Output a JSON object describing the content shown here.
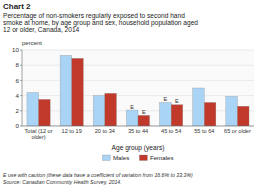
{
  "chart_data": {
    "type": "bar",
    "title": "Chart 2",
    "subtitle": "Percentage of non-smokers regularly exposed to second hand\nsmoke at home, by age group and sex, household population aged\n12 or older, Canada, 2014",
    "y_label": "percent",
    "x_label": "Age group (years)",
    "categories": [
      "Total (12 or\nolder)",
      "12 to 19",
      "20 to 34",
      "35 to 44",
      "45 to 54",
      "55 to 64",
      "65 or older"
    ],
    "series": [
      {
        "name": "Males",
        "color": "#aad4f5",
        "values": [
          4.4,
          9.3,
          4.0,
          2.1,
          3.1,
          5.0,
          3.9
        ]
      },
      {
        "name": "Females",
        "color": "#c0392b",
        "values": [
          3.5,
          8.9,
          4.3,
          1.4,
          2.8,
          3.1,
          2.6
        ]
      }
    ],
    "annotations": [
      {
        "text": "E",
        "series": "Males",
        "category": "35 to 44"
      },
      {
        "text": "E",
        "series": "Males",
        "category": "45 to 54"
      },
      {
        "text": "E",
        "series": "Females",
        "category": "35 to 44"
      },
      {
        "text": "E",
        "series": "Females",
        "category": "45 to 54"
      }
    ],
    "ylim": [
      0,
      10
    ],
    "yticks": [
      0,
      2,
      4,
      6,
      8,
      10
    ],
    "grid": true,
    "legend": "bottom",
    "footnote": "E use with caution (these data have a coefficient of variation from 16.6% to 33.3%)\nSource: Canadian Community Health Survey, 2014."
  }
}
